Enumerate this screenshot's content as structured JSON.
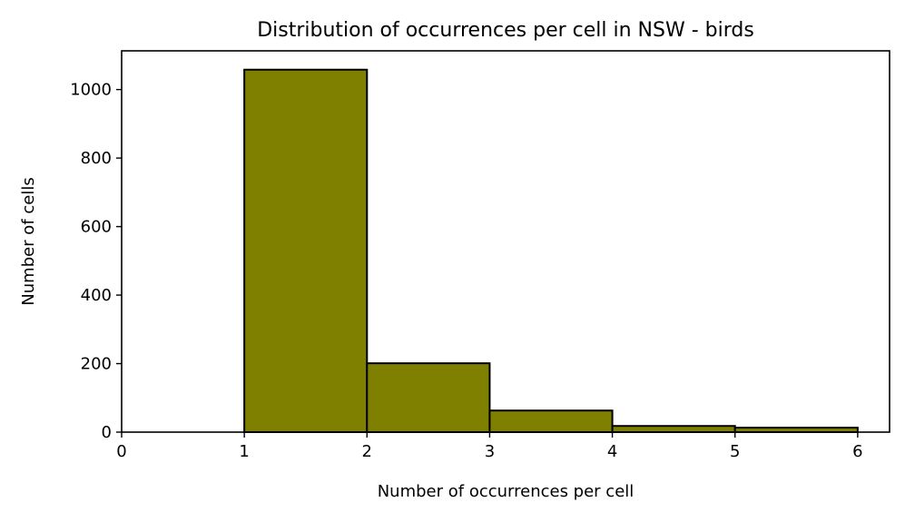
{
  "chart_data": {
    "type": "bar",
    "title": "Distribution of occurrences per cell in NSW - birds",
    "xlabel": "Number of occurrences per cell",
    "ylabel": "Number of cells",
    "bins": [
      [
        1,
        2
      ],
      [
        2,
        3
      ],
      [
        3,
        4
      ],
      [
        4,
        5
      ],
      [
        5,
        6
      ]
    ],
    "values": [
      1058,
      201,
      63,
      18,
      13
    ],
    "xlim": [
      0,
      6.26
    ],
    "ylim": [
      0,
      1113
    ],
    "xticks": [
      "0",
      "1",
      "2",
      "3",
      "4",
      "5",
      "6"
    ],
    "yticks": [
      "0",
      "200",
      "400",
      "600",
      "800",
      "1000"
    ],
    "bar_color": "#808000",
    "edge_color": "#000000",
    "grid": false
  }
}
